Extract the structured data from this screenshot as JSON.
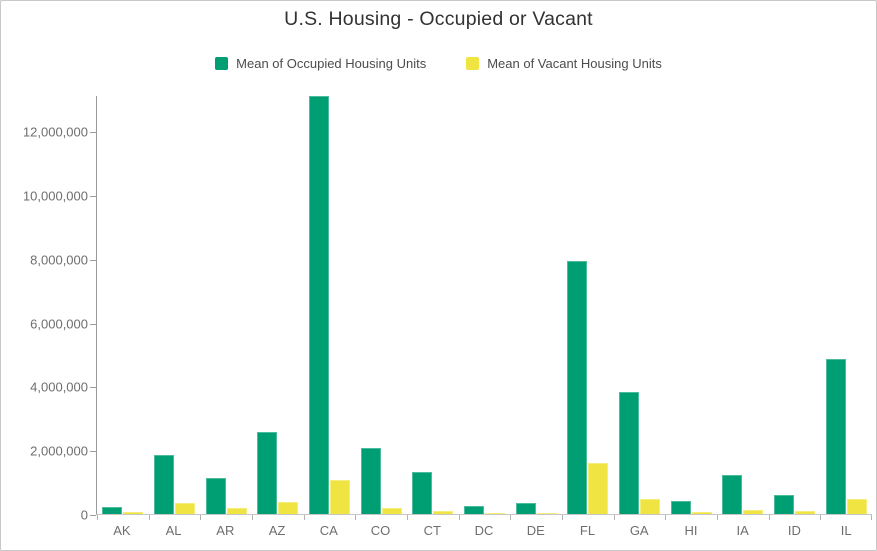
{
  "title": "U.S. Housing - Occupied or Vacant",
  "legend": {
    "items": [
      {
        "label": "Mean of Occupied Housing Units",
        "color": "#009E73"
      },
      {
        "label": "Mean of Vacant Housing Units",
        "color": "#F0E442"
      }
    ]
  },
  "colors": {
    "occupied": "#009E73",
    "vacant": "#F0E442",
    "axis_line": "#9b9b9b",
    "baseline": "#c6c6c6",
    "axis_text": "#6e6e6e",
    "title_text": "#323232"
  },
  "chart_data": {
    "type": "bar",
    "title": "U.S. Housing - Occupied or Vacant",
    "xlabel": "",
    "ylabel": "",
    "grid": false,
    "legend_position": "top",
    "categories": [
      "AK",
      "AL",
      "AR",
      "AZ",
      "CA",
      "CO",
      "CT",
      "DC",
      "DE",
      "FL",
      "GA",
      "HI",
      "IA",
      "ID",
      "IL"
    ],
    "series": [
      {
        "name": "Mean of Occupied Housing Units",
        "color": "#009E73",
        "values": [
          230000,
          1860000,
          1130000,
          2580000,
          13100000,
          2080000,
          1330000,
          240000,
          340000,
          7920000,
          3810000,
          420000,
          1230000,
          610000,
          4850000
        ]
      },
      {
        "name": "Mean of Vacant Housing Units",
        "color": "#F0E442",
        "values": [
          55000,
          340000,
          180000,
          370000,
          1070000,
          200000,
          100000,
          30000,
          40000,
          1590000,
          460000,
          65000,
          125000,
          85000,
          470000
        ]
      }
    ],
    "ylim": [
      0,
      13130000
    ],
    "yticks": [
      {
        "label": "0",
        "value": 0
      },
      {
        "label": "2,000,000",
        "value": 2000000
      },
      {
        "label": "4,000,000",
        "value": 4000000
      },
      {
        "label": "6,000,000",
        "value": 6000000
      },
      {
        "label": "8,000,000",
        "value": 8000000
      },
      {
        "label": "10,000,000",
        "value": 10000000
      },
      {
        "label": "12,000,000",
        "value": 12000000
      }
    ]
  }
}
